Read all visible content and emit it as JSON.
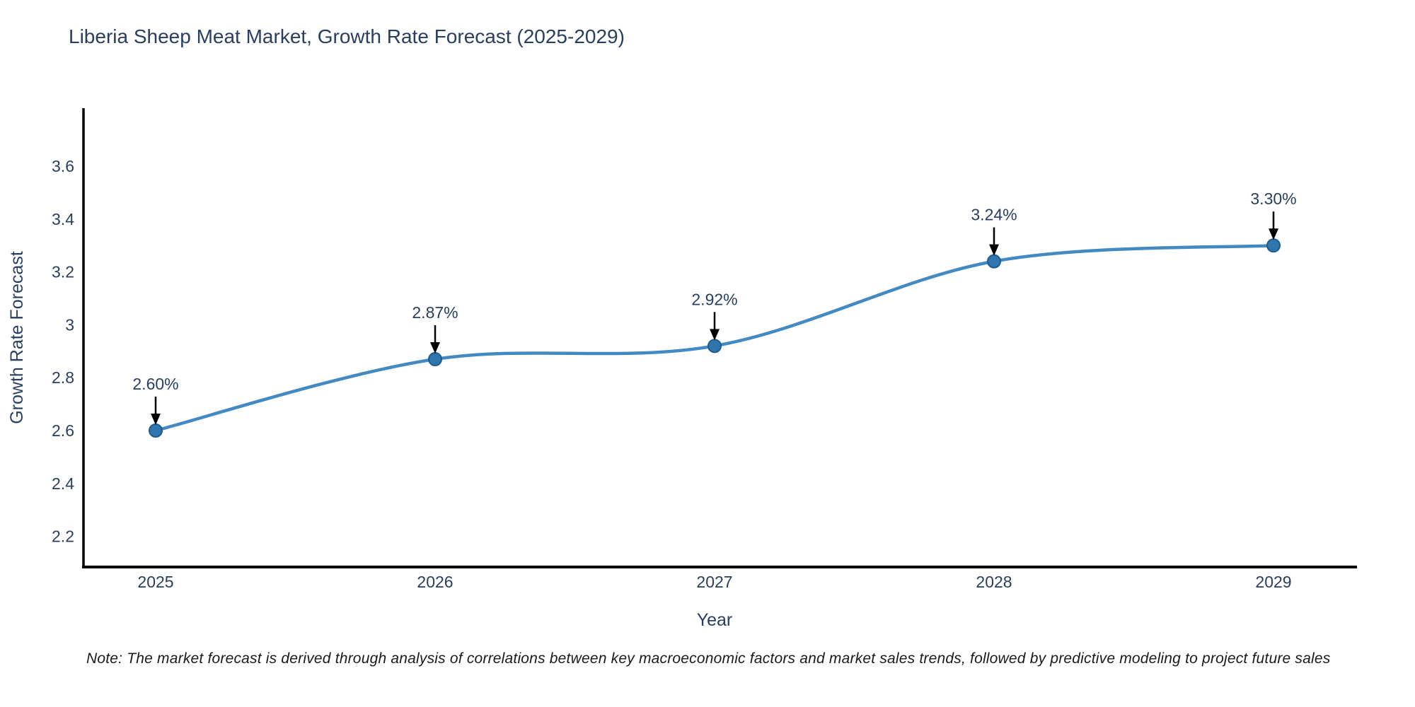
{
  "title": "Liberia Sheep Meat Market, Growth Rate Forecast (2025-2029)",
  "note": "Note: The market forecast is derived through analysis of correlations between key macroeconomic factors and market sales trends, followed by predictive modeling to project future sales",
  "chart_data": {
    "type": "line",
    "title": "Liberia Sheep Meat Market, Growth Rate Forecast (2025-2029)",
    "xlabel": "Year",
    "ylabel": "Growth Rate Forecast",
    "x": [
      2025,
      2026,
      2027,
      2028,
      2029
    ],
    "series": [
      {
        "name": "Growth Rate Forecast",
        "values": [
          2.6,
          2.87,
          2.92,
          3.24,
          3.3
        ],
        "point_labels": [
          "2.60%",
          "2.87%",
          "2.92%",
          "3.24%",
          "3.30%"
        ]
      }
    ],
    "y_ticks": [
      3.6,
      3.4,
      3.2,
      3,
      2.8,
      2.6,
      2.4,
      2.2
    ],
    "ylim": [
      2.08,
      3.82
    ],
    "line_shape": "spline",
    "grid": false,
    "legend": "none",
    "annotations_style": "value label above point with black down arrow",
    "colors": {
      "line": "#4389c2",
      "marker_fill": "#2e76ad",
      "marker_edge": "#1d5c8e",
      "text": "#2a3f5f",
      "axis_line": "#000000",
      "arrow": "#000000",
      "background": "#ffffff"
    }
  }
}
